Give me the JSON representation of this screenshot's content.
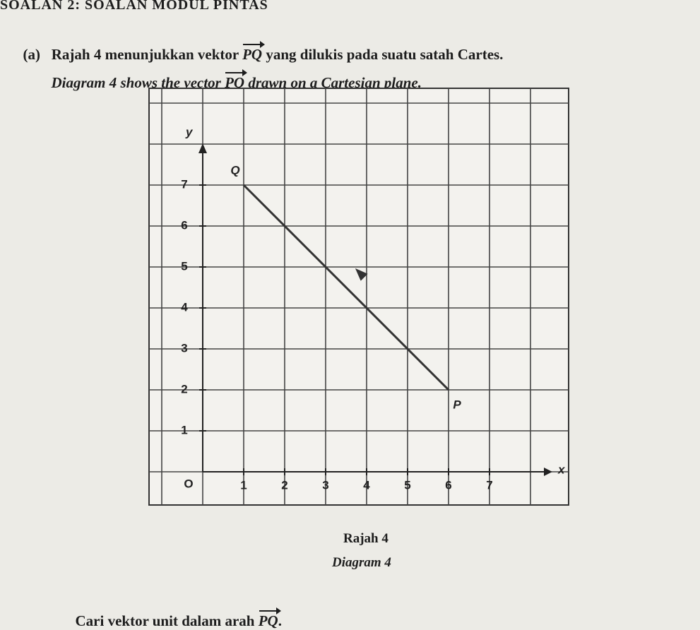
{
  "header": "SOALAN 2: SOALAN MODUL PINTAS",
  "part": {
    "label": "(a)",
    "malay": [
      "Rajah 4 menunjukkan vektor ",
      "PQ",
      " yang dilukis pada suatu satah Cartes."
    ],
    "english": [
      "Diagram 4 shows the vector ",
      "PQ",
      " drawn on a Cartesian plane."
    ]
  },
  "diagram": {
    "y_axis": "y",
    "x_axis": "x",
    "origin": "O",
    "x_ticks": [
      1,
      2,
      3,
      4,
      5,
      6,
      7
    ],
    "y_ticks": [
      1,
      2,
      3,
      4,
      5,
      6,
      7
    ],
    "points": [
      {
        "label": "P",
        "x": 6,
        "y": 2
      },
      {
        "label": "Q",
        "x": 1,
        "y": 7
      }
    ]
  },
  "captions": [
    "Rajah 4",
    "Diagram 4"
  ],
  "question": [
    "Cari vektor unit dalam arah ",
    "PQ",
    "."
  ]
}
